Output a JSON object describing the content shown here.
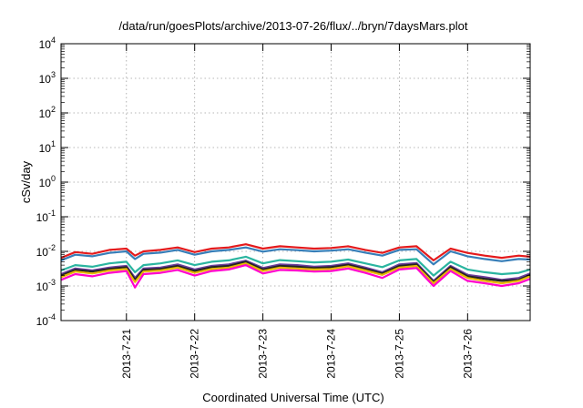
{
  "chart_data": {
    "type": "line",
    "title": "/data/run/goesPlots/archive/2013-07-26/flux/../bryn/7daysMars.plot",
    "xlabel": "Coordinated Universal Time (UTC)",
    "ylabel": "cSv/day",
    "yscale": "log",
    "ylim_exp": [
      -4,
      4
    ],
    "y_tick_labels": [
      {
        "base": "10",
        "exp": "-4"
      },
      {
        "base": "10",
        "exp": "-3"
      },
      {
        "base": "10",
        "exp": "-2"
      },
      {
        "base": "10",
        "exp": "-1"
      },
      {
        "base": "10",
        "exp": "0"
      },
      {
        "base": "10",
        "exp": "1"
      },
      {
        "base": "10",
        "exp": "2"
      },
      {
        "base": "10",
        "exp": "3"
      },
      {
        "base": "10",
        "exp": "4"
      }
    ],
    "xlim": [
      "2013-07-20 01:00",
      "2013-07-26 22:00"
    ],
    "x_ticks": [
      "2013-07-21",
      "2013-07-22",
      "2013-07-23",
      "2013-07-24",
      "2013-07-25",
      "2013-07-26"
    ],
    "x_tick_labels": [
      "2013-7-21",
      "2013-7-22",
      "2013-7-23",
      "2013-7-24",
      "2013-7-25",
      "2013-7-26"
    ],
    "grid": true,
    "legend": "none",
    "series": [
      {
        "color": "#e41a1c",
        "x": [
          "2013-07-20 01:00",
          "2013-07-20 06:00",
          "2013-07-20 12:00",
          "2013-07-20 18:00",
          "2013-07-21 00:00",
          "2013-07-21 03:00",
          "2013-07-21 06:00",
          "2013-07-21 12:00",
          "2013-07-21 18:00",
          "2013-07-22 00:00",
          "2013-07-22 06:00",
          "2013-07-22 12:00",
          "2013-07-22 18:00",
          "2013-07-23 00:00",
          "2013-07-23 06:00",
          "2013-07-23 12:00",
          "2013-07-23 18:00",
          "2013-07-24 00:00",
          "2013-07-24 06:00",
          "2013-07-24 12:00",
          "2013-07-24 18:00",
          "2013-07-25 00:00",
          "2013-07-25 06:00",
          "2013-07-25 12:00",
          "2013-07-25 18:00",
          "2013-07-26 00:00",
          "2013-07-26 06:00",
          "2013-07-26 12:00",
          "2013-07-26 18:00",
          "2013-07-26 22:00"
        ],
        "y": [
          0.0065,
          0.0095,
          0.0085,
          0.011,
          0.012,
          0.0075,
          0.01,
          0.011,
          0.013,
          0.0095,
          0.012,
          0.013,
          0.016,
          0.012,
          0.014,
          0.013,
          0.012,
          0.0125,
          0.014,
          0.011,
          0.009,
          0.013,
          0.014,
          0.0055,
          0.012,
          0.009,
          0.0075,
          0.0065,
          0.0075,
          0.007
        ]
      },
      {
        "color": "#377eb8",
        "x": [
          "2013-07-20 01:00",
          "2013-07-20 06:00",
          "2013-07-20 12:00",
          "2013-07-20 18:00",
          "2013-07-21 00:00",
          "2013-07-21 03:00",
          "2013-07-21 06:00",
          "2013-07-21 12:00",
          "2013-07-21 18:00",
          "2013-07-22 00:00",
          "2013-07-22 06:00",
          "2013-07-22 12:00",
          "2013-07-22 18:00",
          "2013-07-23 00:00",
          "2013-07-23 06:00",
          "2013-07-23 12:00",
          "2013-07-23 18:00",
          "2013-07-24 00:00",
          "2013-07-24 06:00",
          "2013-07-24 12:00",
          "2013-07-24 18:00",
          "2013-07-25 00:00",
          "2013-07-25 06:00",
          "2013-07-25 12:00",
          "2013-07-25 18:00",
          "2013-07-26 00:00",
          "2013-07-26 06:00",
          "2013-07-26 12:00",
          "2013-07-26 18:00",
          "2013-07-26 22:00"
        ],
        "y": [
          0.0055,
          0.008,
          0.0072,
          0.009,
          0.01,
          0.006,
          0.0085,
          0.0092,
          0.011,
          0.008,
          0.01,
          0.011,
          0.013,
          0.0098,
          0.0115,
          0.0108,
          0.01,
          0.0105,
          0.0115,
          0.0092,
          0.0075,
          0.011,
          0.0115,
          0.0042,
          0.01,
          0.0072,
          0.006,
          0.0052,
          0.006,
          0.0058
        ]
      },
      {
        "color": "#2bb5a0",
        "x": [
          "2013-07-20 01:00",
          "2013-07-20 06:00",
          "2013-07-20 12:00",
          "2013-07-20 18:00",
          "2013-07-21 00:00",
          "2013-07-21 03:00",
          "2013-07-21 06:00",
          "2013-07-21 12:00",
          "2013-07-21 18:00",
          "2013-07-22 00:00",
          "2013-07-22 06:00",
          "2013-07-22 12:00",
          "2013-07-22 18:00",
          "2013-07-23 00:00",
          "2013-07-23 06:00",
          "2013-07-23 12:00",
          "2013-07-23 18:00",
          "2013-07-24 00:00",
          "2013-07-24 06:00",
          "2013-07-24 12:00",
          "2013-07-24 18:00",
          "2013-07-25 00:00",
          "2013-07-25 06:00",
          "2013-07-25 12:00",
          "2013-07-25 18:00",
          "2013-07-26 00:00",
          "2013-07-26 06:00",
          "2013-07-26 12:00",
          "2013-07-26 18:00",
          "2013-07-26 22:00"
        ],
        "y": [
          0.0028,
          0.004,
          0.0036,
          0.0045,
          0.005,
          0.0025,
          0.004,
          0.0045,
          0.0055,
          0.004,
          0.005,
          0.0055,
          0.007,
          0.0045,
          0.0056,
          0.0052,
          0.0048,
          0.005,
          0.0058,
          0.0045,
          0.0035,
          0.0055,
          0.006,
          0.002,
          0.005,
          0.003,
          0.0025,
          0.0022,
          0.0024,
          0.003
        ]
      },
      {
        "color": "#6a3d9a",
        "x": [
          "2013-07-20 01:00",
          "2013-07-20 06:00",
          "2013-07-20 12:00",
          "2013-07-20 18:00",
          "2013-07-21 00:00",
          "2013-07-21 03:00",
          "2013-07-21 06:00",
          "2013-07-21 12:00",
          "2013-07-21 18:00",
          "2013-07-22 00:00",
          "2013-07-22 06:00",
          "2013-07-22 12:00",
          "2013-07-22 18:00",
          "2013-07-23 00:00",
          "2013-07-23 06:00",
          "2013-07-23 12:00",
          "2013-07-23 18:00",
          "2013-07-24 00:00",
          "2013-07-24 06:00",
          "2013-07-24 12:00",
          "2013-07-24 18:00",
          "2013-07-25 00:00",
          "2013-07-25 06:00",
          "2013-07-25 12:00",
          "2013-07-25 18:00",
          "2013-07-26 00:00",
          "2013-07-26 06:00",
          "2013-07-26 12:00",
          "2013-07-26 18:00",
          "2013-07-26 22:00"
        ],
        "y": [
          0.0022,
          0.0032,
          0.0028,
          0.0034,
          0.0038,
          0.0017,
          0.0032,
          0.0034,
          0.0042,
          0.003,
          0.0038,
          0.0042,
          0.0054,
          0.0033,
          0.0042,
          0.004,
          0.0036,
          0.0038,
          0.0045,
          0.0034,
          0.0025,
          0.0042,
          0.0046,
          0.0014,
          0.0038,
          0.0021,
          0.0018,
          0.0015,
          0.0017,
          0.0023
        ]
      },
      {
        "color": "#222222",
        "x": [
          "2013-07-20 01:00",
          "2013-07-20 06:00",
          "2013-07-20 12:00",
          "2013-07-20 18:00",
          "2013-07-21 00:00",
          "2013-07-21 03:00",
          "2013-07-21 06:00",
          "2013-07-21 12:00",
          "2013-07-21 18:00",
          "2013-07-22 00:00",
          "2013-07-22 06:00",
          "2013-07-22 12:00",
          "2013-07-22 18:00",
          "2013-07-23 00:00",
          "2013-07-23 06:00",
          "2013-07-23 12:00",
          "2013-07-23 18:00",
          "2013-07-24 00:00",
          "2013-07-24 06:00",
          "2013-07-24 12:00",
          "2013-07-24 18:00",
          "2013-07-25 00:00",
          "2013-07-25 06:00",
          "2013-07-25 12:00",
          "2013-07-25 18:00",
          "2013-07-26 00:00",
          "2013-07-26 06:00",
          "2013-07-26 12:00",
          "2013-07-26 18:00",
          "2013-07-26 22:00"
        ],
        "y": [
          0.002,
          0.0029,
          0.0026,
          0.0031,
          0.0035,
          0.0015,
          0.0029,
          0.0031,
          0.0038,
          0.0027,
          0.0035,
          0.0038,
          0.005,
          0.003,
          0.0038,
          0.0036,
          0.0033,
          0.0035,
          0.0041,
          0.0031,
          0.0023,
          0.0038,
          0.0042,
          0.0013,
          0.0035,
          0.0019,
          0.0016,
          0.0014,
          0.0015,
          0.0021
        ]
      },
      {
        "color": "#e6b800",
        "x": [
          "2013-07-20 01:00",
          "2013-07-20 06:00",
          "2013-07-20 12:00",
          "2013-07-20 18:00",
          "2013-07-21 00:00",
          "2013-07-21 03:00",
          "2013-07-21 06:00",
          "2013-07-21 12:00",
          "2013-07-21 18:00",
          "2013-07-22 00:00",
          "2013-07-22 06:00",
          "2013-07-22 12:00",
          "2013-07-22 18:00",
          "2013-07-23 00:00",
          "2013-07-23 06:00",
          "2013-07-23 12:00",
          "2013-07-23 18:00",
          "2013-07-24 00:00",
          "2013-07-24 06:00",
          "2013-07-24 12:00",
          "2013-07-24 18:00",
          "2013-07-25 00:00",
          "2013-07-25 06:00",
          "2013-07-25 12:00",
          "2013-07-25 18:00",
          "2013-07-26 00:00",
          "2013-07-26 06:00",
          "2013-07-26 12:00",
          "2013-07-26 18:00",
          "2013-07-26 22:00"
        ],
        "y": [
          0.0018,
          0.0026,
          0.0023,
          0.0028,
          0.0031,
          0.0013,
          0.0026,
          0.0028,
          0.0034,
          0.0024,
          0.0031,
          0.0034,
          0.0045,
          0.0027,
          0.0034,
          0.0032,
          0.003,
          0.0031,
          0.0037,
          0.0028,
          0.0021,
          0.0034,
          0.0038,
          0.0012,
          0.0031,
          0.0017,
          0.0014,
          0.0012,
          0.0014,
          0.0019
        ]
      },
      {
        "color": "#ff00cc",
        "x": [
          "2013-07-20 01:00",
          "2013-07-20 06:00",
          "2013-07-20 12:00",
          "2013-07-20 18:00",
          "2013-07-21 00:00",
          "2013-07-21 03:00",
          "2013-07-21 06:00",
          "2013-07-21 12:00",
          "2013-07-21 18:00",
          "2013-07-22 00:00",
          "2013-07-22 06:00",
          "2013-07-22 12:00",
          "2013-07-22 18:00",
          "2013-07-23 00:00",
          "2013-07-23 06:00",
          "2013-07-23 12:00",
          "2013-07-23 18:00",
          "2013-07-24 00:00",
          "2013-07-24 06:00",
          "2013-07-24 12:00",
          "2013-07-24 18:00",
          "2013-07-25 00:00",
          "2013-07-25 06:00",
          "2013-07-25 12:00",
          "2013-07-25 18:00",
          "2013-07-26 00:00",
          "2013-07-26 06:00",
          "2013-07-26 12:00",
          "2013-07-26 18:00",
          "2013-07-26 22:00"
        ],
        "y": [
          0.0015,
          0.0022,
          0.0019,
          0.0024,
          0.0027,
          0.0009,
          0.0022,
          0.0024,
          0.0029,
          0.002,
          0.0027,
          0.003,
          0.004,
          0.0023,
          0.0029,
          0.0028,
          0.0026,
          0.0027,
          0.0032,
          0.0024,
          0.0017,
          0.003,
          0.0033,
          0.001,
          0.0027,
          0.0014,
          0.0012,
          0.001,
          0.0012,
          0.0016
        ]
      }
    ]
  }
}
